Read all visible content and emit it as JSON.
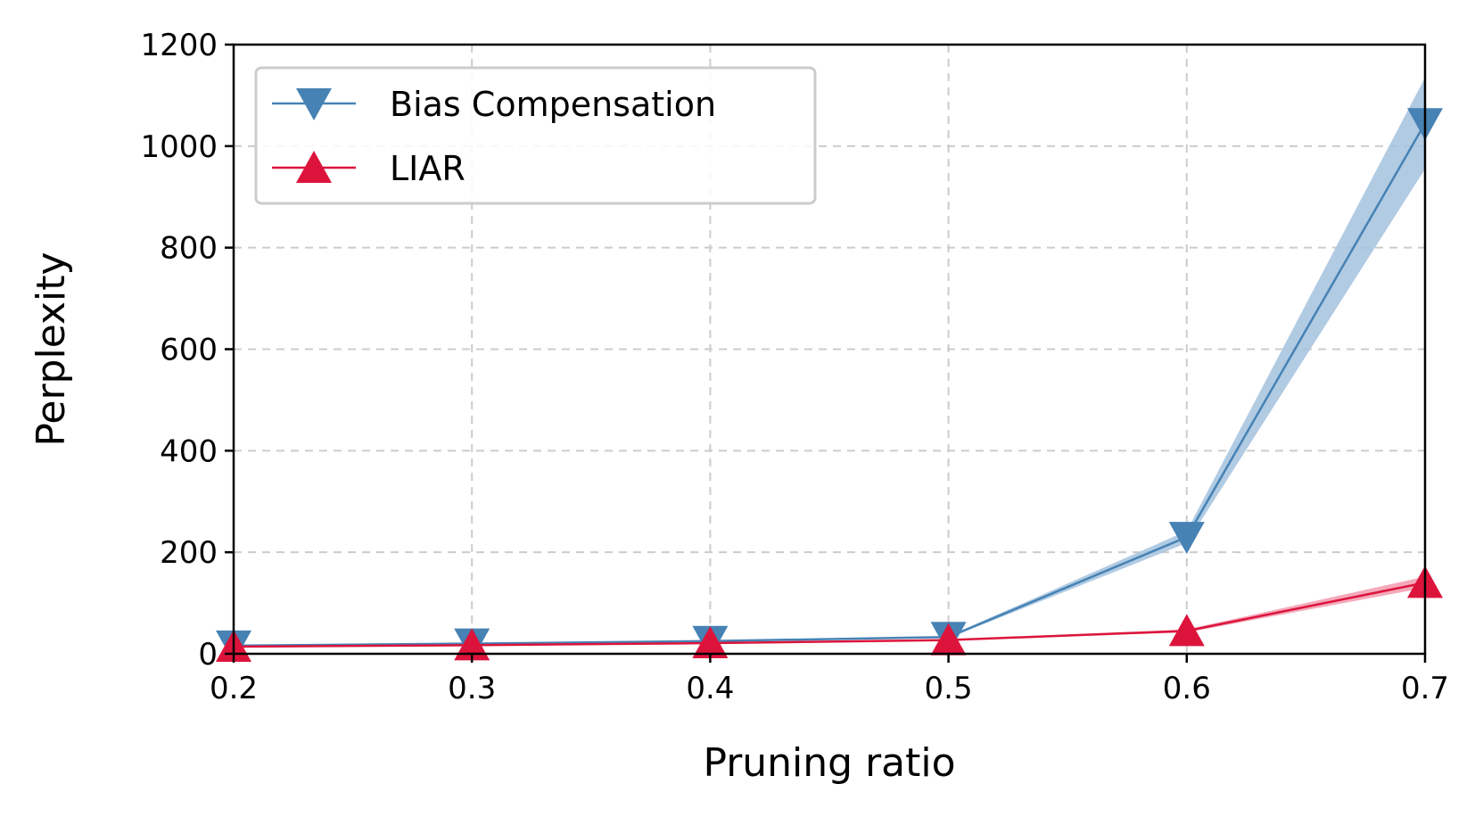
{
  "chart_data": {
    "type": "line",
    "xlabel": "Pruning ratio",
    "ylabel": "Perplexity",
    "xlim": [
      0.2,
      0.7
    ],
    "ylim": [
      0,
      1200
    ],
    "x": [
      0.2,
      0.3,
      0.4,
      0.5,
      0.6,
      0.7
    ],
    "xticks": [
      "0.2",
      "0.3",
      "0.4",
      "0.5",
      "0.6",
      "0.7"
    ],
    "yticks": [
      "0",
      "200",
      "400",
      "600",
      "800",
      "1000",
      "1200"
    ],
    "grid": true,
    "legend_position": "top-left",
    "series": [
      {
        "name": "Bias Compensation",
        "marker": "triangle-down",
        "color": "#4682b4",
        "band_color": "#a3c2de",
        "values": [
          16,
          20,
          25,
          33,
          230,
          1045
        ],
        "lower": [
          15,
          19,
          24,
          31,
          218,
          955
        ],
        "upper": [
          17,
          21,
          26,
          35,
          242,
          1135
        ]
      },
      {
        "name": "LIAR",
        "marker": "triangle-up",
        "color": "#dc143c",
        "band_color": "#f29aae",
        "values": [
          14,
          17,
          21,
          27,
          45,
          140
        ],
        "lower": [
          13,
          16,
          20,
          26,
          42,
          130
        ],
        "upper": [
          15,
          18,
          22,
          28,
          48,
          152
        ]
      }
    ]
  }
}
